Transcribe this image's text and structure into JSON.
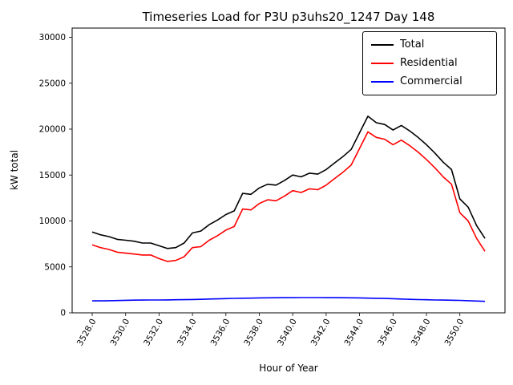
{
  "chart_data": {
    "type": "line",
    "title": "Timeseries Load for P3U p3uhs20_1247  Day 148",
    "xlabel": "Hour of Year",
    "ylabel": "kW total",
    "xlim": [
      3526.8,
      3552.7
    ],
    "ylim": [
      0,
      31000
    ],
    "grid": false,
    "legend_position": "upper right",
    "xticks": [
      3528,
      3530,
      3532,
      3534,
      3536,
      3538,
      3540,
      3542,
      3544,
      3546,
      3548,
      3550
    ],
    "xtick_labels": [
      "3528.0",
      "3530.0",
      "3532.0",
      "3534.0",
      "3536.0",
      "3538.0",
      "3540.0",
      "3542.0",
      "3544.0",
      "3546.0",
      "3548.0",
      "3550.0"
    ],
    "yticks": [
      0,
      5000,
      10000,
      15000,
      20000,
      25000,
      30000
    ],
    "x": [
      3528.0,
      3528.5,
      3529.0,
      3529.5,
      3530.0,
      3530.5,
      3531.0,
      3531.5,
      3532.0,
      3532.5,
      3533.0,
      3533.5,
      3534.0,
      3534.5,
      3535.0,
      3535.5,
      3536.0,
      3536.5,
      3537.0,
      3537.5,
      3538.0,
      3538.5,
      3539.0,
      3539.5,
      3540.0,
      3540.5,
      3541.0,
      3541.5,
      3542.0,
      3542.5,
      3543.0,
      3543.5,
      3544.0,
      3544.5,
      3545.0,
      3545.5,
      3546.0,
      3546.5,
      3547.0,
      3547.5,
      3548.0,
      3548.5,
      3549.0,
      3549.5,
      3550.0,
      3550.5,
      3551.0,
      3551.5
    ],
    "series": [
      {
        "name": "Total",
        "color": "#000000",
        "values": [
          8800,
          8500,
          8300,
          8000,
          7900,
          7800,
          7600,
          7600,
          7300,
          7000,
          7100,
          7600,
          8700,
          8900,
          9600,
          10100,
          10700,
          11100,
          13000,
          12900,
          13600,
          14000,
          13900,
          14400,
          15000,
          14800,
          15200,
          15100,
          15600,
          16300,
          17000,
          17800,
          19600,
          21400,
          20700,
          20500,
          19900,
          20400,
          19800,
          19100,
          18300,
          17400,
          16400,
          15600,
          12400,
          11500,
          9500,
          8100
        ]
      },
      {
        "name": "Residential",
        "color": "#ff0000",
        "values": [
          7400,
          7100,
          6900,
          6600,
          6500,
          6400,
          6300,
          6300,
          5900,
          5600,
          5700,
          6100,
          7100,
          7200,
          7900,
          8400,
          9000,
          9400,
          11300,
          11200,
          11900,
          12300,
          12200,
          12700,
          13300,
          13100,
          13500,
          13400,
          13900,
          14600,
          15300,
          16100,
          17900,
          19700,
          19100,
          18900,
          18300,
          18800,
          18200,
          17500,
          16700,
          15800,
          14800,
          14000,
          10900,
          10000,
          8100,
          6700
        ]
      },
      {
        "name": "Commercial",
        "color": "#0000ff",
        "values": [
          1300,
          1300,
          1320,
          1340,
          1360,
          1380,
          1390,
          1400,
          1400,
          1410,
          1420,
          1430,
          1450,
          1470,
          1500,
          1520,
          1550,
          1570,
          1590,
          1600,
          1620,
          1630,
          1640,
          1650,
          1650,
          1660,
          1660,
          1660,
          1650,
          1650,
          1640,
          1630,
          1620,
          1600,
          1580,
          1560,
          1540,
          1500,
          1470,
          1440,
          1420,
          1400,
          1390,
          1370,
          1350,
          1320,
          1280,
          1250
        ]
      }
    ]
  }
}
